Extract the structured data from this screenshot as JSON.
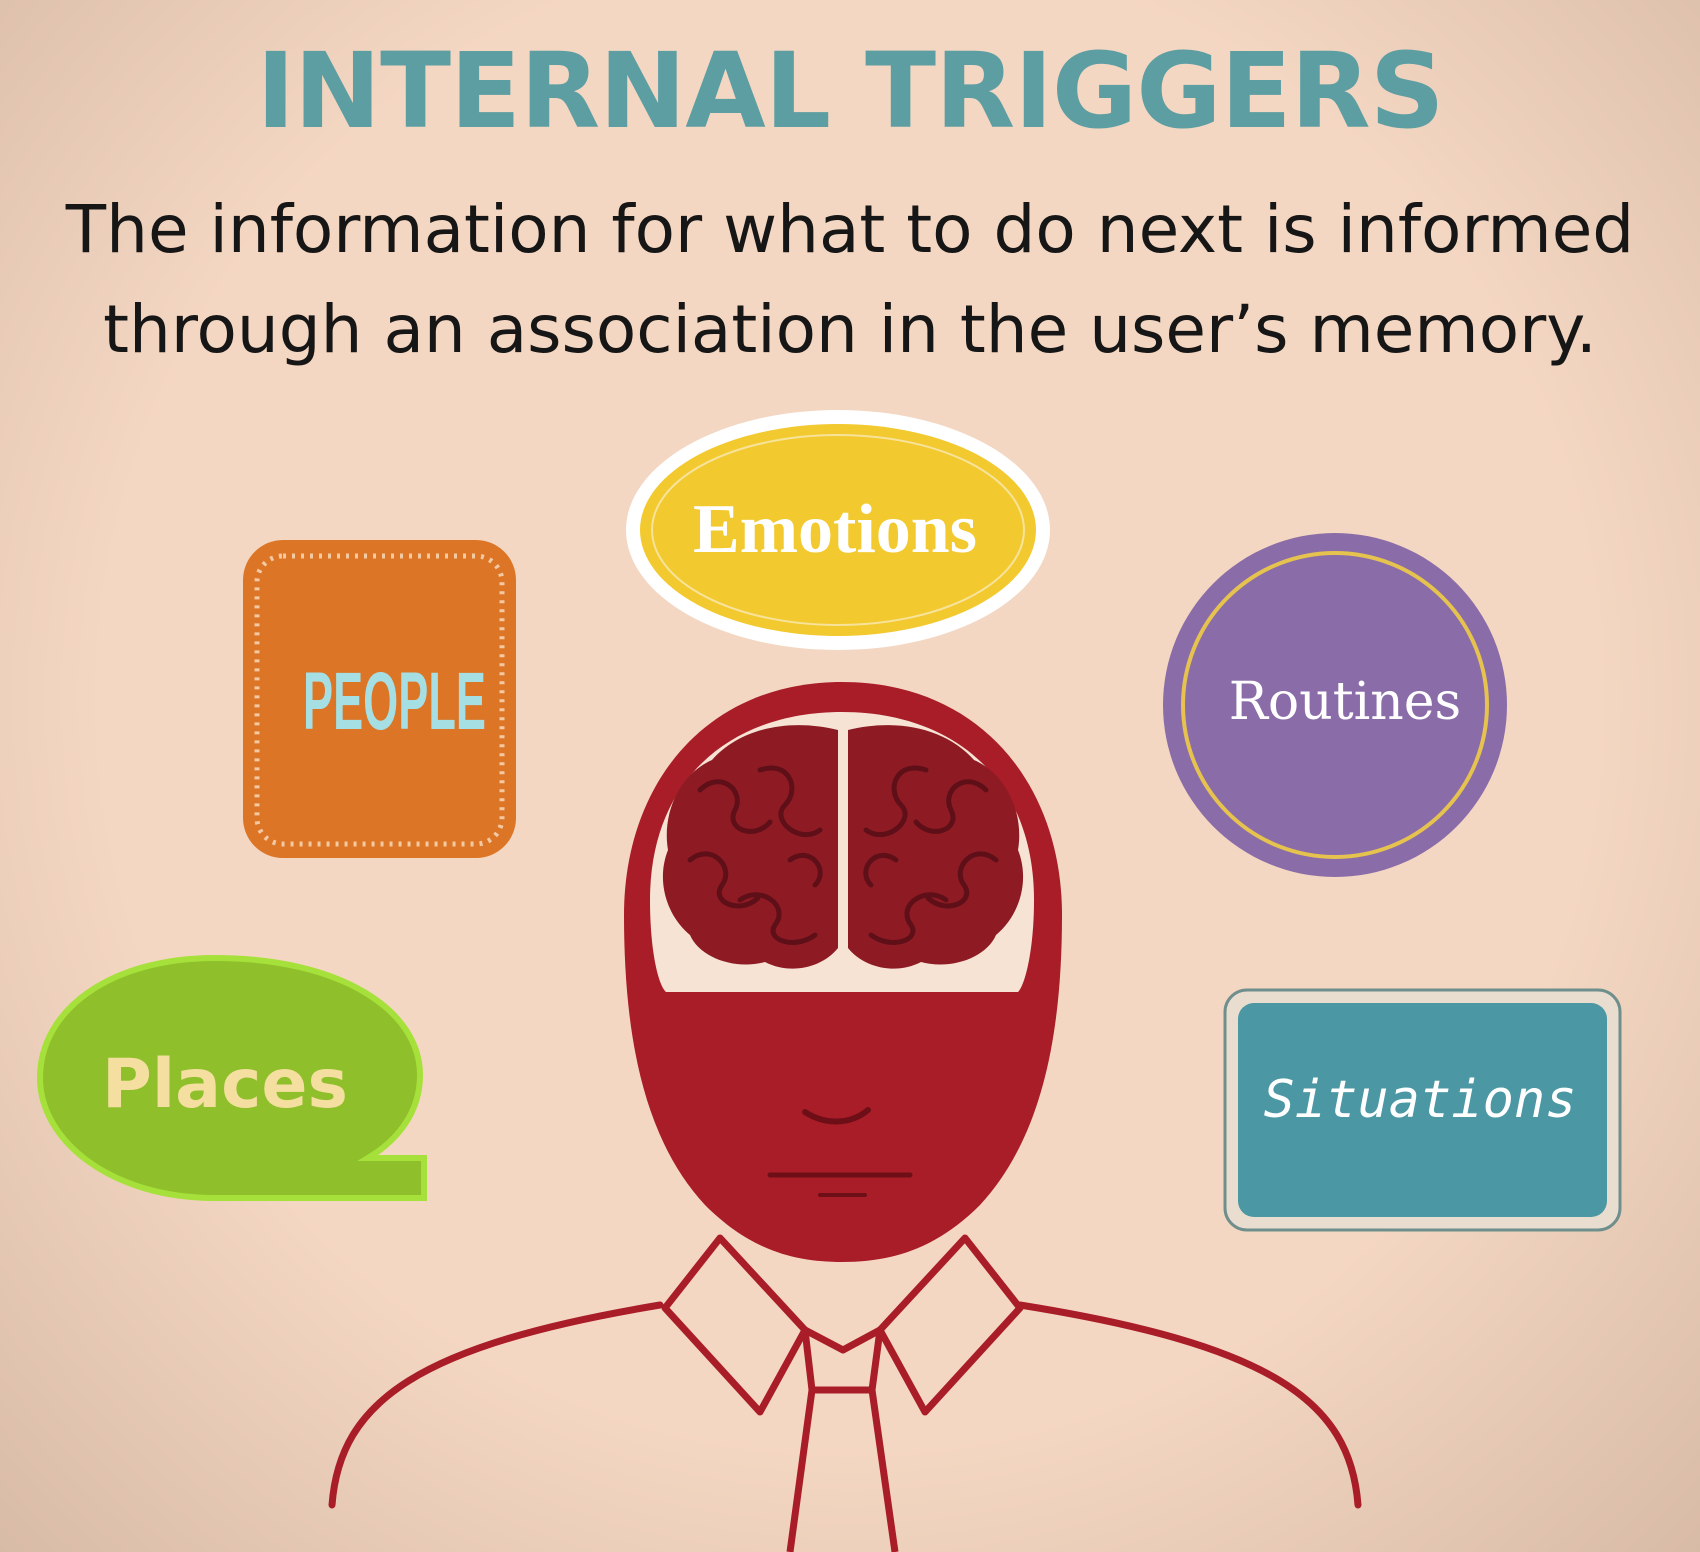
{
  "slide": {
    "title": "INTERNAL TRIGGERS",
    "subtitle_line1": "The information for what to do next is informed",
    "subtitle_line2": "through an association in the user’s memory."
  },
  "triggers": {
    "people": "PEOPLE",
    "emotions": "Emotions",
    "routines": "Routines",
    "places": "Places",
    "situations": "Situations"
  },
  "colors": {
    "background": "#f4d7c2",
    "title": "#5d9ea3",
    "people": "#dc7526",
    "emotions": "#f2c92f",
    "routines": "#8a6da8",
    "places": "#8fbf2a",
    "situations": "#4b97a3",
    "figure": "#a91d28"
  }
}
